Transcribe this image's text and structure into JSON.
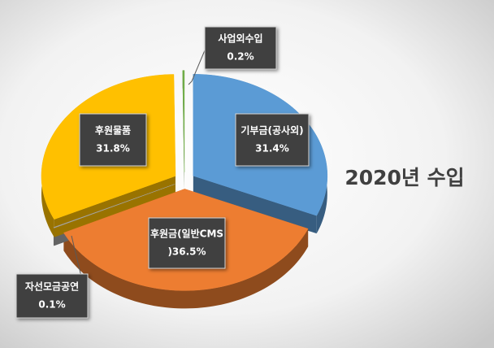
{
  "chart_data": {
    "type": "pie",
    "title": "2020년 수입",
    "categories": [
      "기부금(공사외)",
      "후원금(일반CMS",
      "자선모금공연",
      "후원물품",
      "사업외수입"
    ],
    "values": [
      31.4,
      36.5,
      0.1,
      31.8,
      0.2
    ],
    "value_labels": [
      "31.4%",
      ")36.5%",
      "0.1%",
      "31.8%",
      "0.2%"
    ],
    "colors": [
      "#5b9bd5",
      "#ed7d31",
      "#a5a5a5",
      "#ffc000",
      "#70ad47"
    ]
  }
}
